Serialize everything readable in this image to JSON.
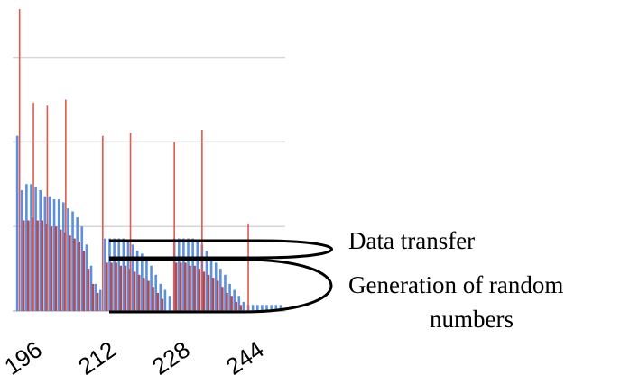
{
  "chart_data": {
    "type": "bar",
    "x_ticks": [
      "196",
      "212",
      "228",
      "244"
    ],
    "x_tick_values": [
      196,
      212,
      228,
      244
    ],
    "xlim": [
      192,
      251
    ],
    "ylim": [
      0,
      100
    ],
    "grid": true,
    "series": [
      {
        "color": "#e05a4f",
        "points": [
          [
            193.5,
            100
          ],
          [
            196.5,
            69
          ],
          [
            199.5,
            68
          ],
          [
            203.5,
            70
          ],
          [
            211.5,
            58
          ],
          [
            217.5,
            59
          ],
          [
            227,
            56
          ],
          [
            233,
            60
          ],
          [
            243,
            29
          ]
        ]
      },
      {
        "color": "#5b8fe0",
        "points": [
          [
            193,
            58
          ],
          [
            194,
            40
          ],
          [
            195,
            42
          ],
          [
            196,
            42
          ],
          [
            197,
            41
          ],
          [
            198,
            40
          ],
          [
            199,
            38
          ],
          [
            200,
            38
          ],
          [
            201,
            37
          ],
          [
            202,
            37
          ],
          [
            203,
            36
          ],
          [
            204,
            34
          ],
          [
            205,
            33
          ],
          [
            206,
            31
          ],
          [
            207,
            28
          ],
          [
            208,
            22
          ],
          [
            209,
            15
          ],
          [
            210,
            9
          ],
          [
            211,
            7
          ],
          [
            212,
            24
          ],
          [
            213,
            24
          ],
          [
            214,
            24
          ],
          [
            215,
            24
          ],
          [
            216,
            24
          ],
          [
            217,
            23
          ],
          [
            218,
            22
          ],
          [
            219,
            20
          ],
          [
            220,
            19
          ],
          [
            221,
            17
          ],
          [
            222,
            15
          ],
          [
            223,
            12
          ],
          [
            224,
            9
          ],
          [
            225,
            7
          ],
          [
            226,
            5
          ],
          [
            227,
            24
          ],
          [
            228,
            24
          ],
          [
            229,
            24
          ],
          [
            230,
            24
          ],
          [
            231,
            24
          ],
          [
            232,
            23
          ],
          [
            233,
            22
          ],
          [
            234,
            20
          ],
          [
            235,
            18
          ],
          [
            236,
            16
          ],
          [
            237,
            14
          ],
          [
            238,
            12
          ],
          [
            239,
            9
          ],
          [
            240,
            7
          ],
          [
            241,
            5
          ],
          [
            242,
            3
          ],
          [
            243,
            2
          ],
          [
            244,
            2
          ],
          [
            245,
            2
          ],
          [
            246,
            2
          ],
          [
            247,
            2
          ],
          [
            248,
            2
          ],
          [
            249,
            2
          ],
          [
            250,
            2
          ]
        ]
      },
      {
        "color": "#b24a52",
        "points": [
          [
            194,
            30
          ],
          [
            195,
            30
          ],
          [
            196,
            31
          ],
          [
            197,
            30
          ],
          [
            198,
            30
          ],
          [
            199,
            29
          ],
          [
            200,
            28
          ],
          [
            201,
            28
          ],
          [
            202,
            27
          ],
          [
            203,
            26
          ],
          [
            204,
            25
          ],
          [
            205,
            24
          ],
          [
            206,
            23
          ],
          [
            207,
            20
          ],
          [
            208,
            14
          ],
          [
            209,
            9
          ],
          [
            210,
            6
          ],
          [
            212,
            16
          ],
          [
            213,
            16
          ],
          [
            214,
            16
          ],
          [
            215,
            15
          ],
          [
            216,
            15
          ],
          [
            217,
            14
          ],
          [
            218,
            13
          ],
          [
            219,
            12
          ],
          [
            220,
            11
          ],
          [
            221,
            10
          ],
          [
            222,
            8
          ],
          [
            223,
            6
          ],
          [
            224,
            4
          ],
          [
            227,
            16
          ],
          [
            228,
            16
          ],
          [
            229,
            16
          ],
          [
            230,
            15
          ],
          [
            231,
            15
          ],
          [
            232,
            14
          ],
          [
            233,
            13
          ],
          [
            234,
            12
          ],
          [
            235,
            11
          ],
          [
            236,
            10
          ],
          [
            237,
            8
          ],
          [
            238,
            6
          ],
          [
            239,
            5
          ],
          [
            240,
            3
          ],
          [
            241,
            2
          ]
        ]
      }
    ]
  },
  "annotations": {
    "data_transfer": "Data transfer",
    "random_line1": "Generation  of random",
    "random_line2": "numbers"
  }
}
